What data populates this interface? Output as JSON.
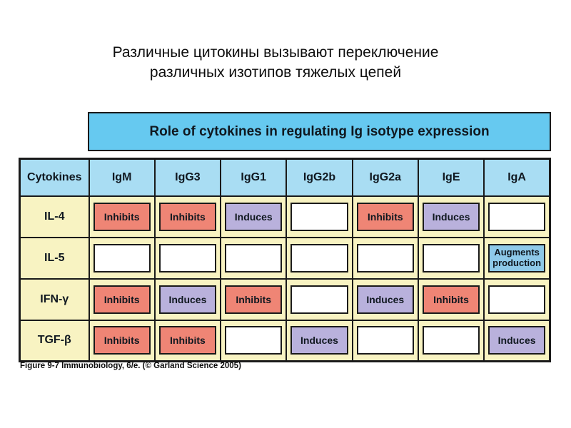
{
  "slide": {
    "title_line1": "Различные цитокины вызывают переключение",
    "title_line2": "различных изотипов тяжелых цепей"
  },
  "figure": {
    "header": "Role of cytokines in regulating Ig isotype expression",
    "caption": "Figure 9-7  Immunobiology, 6/e. (© Garland Science 2005)",
    "columns": [
      "Cytokines",
      "IgM",
      "IgG3",
      "IgG1",
      "IgG2b",
      "IgG2a",
      "IgE",
      "IgA"
    ],
    "rows": [
      {
        "label": "IL-4",
        "cells": [
          {
            "text": "Inhibits",
            "type": "inhibits"
          },
          {
            "text": "Inhibits",
            "type": "inhibits"
          },
          {
            "text": "Induces",
            "type": "induces"
          },
          {
            "text": "",
            "type": "blank"
          },
          {
            "text": "Inhibits",
            "type": "inhibits"
          },
          {
            "text": "Induces",
            "type": "induces"
          },
          {
            "text": "",
            "type": "blank"
          }
        ]
      },
      {
        "label": "IL-5",
        "cells": [
          {
            "text": "",
            "type": "blank"
          },
          {
            "text": "",
            "type": "blank"
          },
          {
            "text": "",
            "type": "blank"
          },
          {
            "text": "",
            "type": "blank"
          },
          {
            "text": "",
            "type": "blank"
          },
          {
            "text": "",
            "type": "blank"
          },
          {
            "text": "Augments production",
            "type": "augments"
          }
        ]
      },
      {
        "label": "IFN-γ",
        "cells": [
          {
            "text": "Inhibits",
            "type": "inhibits"
          },
          {
            "text": "Induces",
            "type": "induces"
          },
          {
            "text": "Inhibits",
            "type": "inhibits"
          },
          {
            "text": "",
            "type": "blank"
          },
          {
            "text": "Induces",
            "type": "induces"
          },
          {
            "text": "Inhibits",
            "type": "inhibits"
          },
          {
            "text": "",
            "type": "blank"
          }
        ]
      },
      {
        "label": "TGF-β",
        "cells": [
          {
            "text": "Inhibits",
            "type": "inhibits"
          },
          {
            "text": "Inhibits",
            "type": "inhibits"
          },
          {
            "text": "",
            "type": "blank"
          },
          {
            "text": "Induces",
            "type": "induces"
          },
          {
            "text": "",
            "type": "blank"
          },
          {
            "text": "",
            "type": "blank"
          },
          {
            "text": "Induces",
            "type": "induces"
          }
        ]
      }
    ],
    "colors": {
      "header-bar": "#66c9f0",
      "header-cell": "#a9ddf3",
      "row-bg": "#f8f3c2",
      "inhibits": "#ef8575",
      "induces": "#b9b1dc",
      "augments": "#8ec9e9",
      "border": "#1a1a1a",
      "text": "#101820"
    }
  }
}
